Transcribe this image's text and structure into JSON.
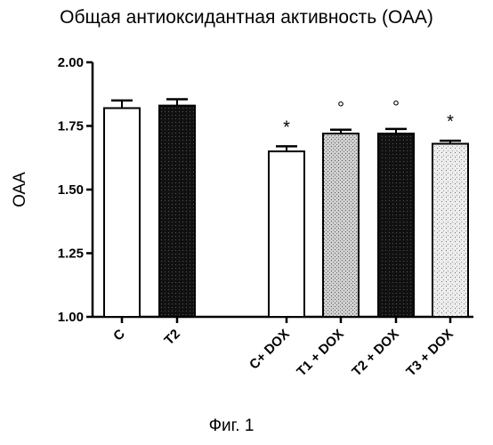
{
  "title": "Общая антиоксидантная активность (ОАА)",
  "caption": "Фиг. 1",
  "chart_data": {
    "type": "bar",
    "title": "Общая антиоксидантная активность (ОАА)",
    "xlabel": "",
    "ylabel": "ОАА",
    "ylim": [
      1.0,
      2.0
    ],
    "yticks": [
      "1.00",
      "1.25",
      "1.50",
      "1.75",
      "2.00"
    ],
    "categories": [
      "C",
      "T2",
      "C+ DOX",
      "T1 + DOX",
      "T2 + DOX",
      "T3 + DOX"
    ],
    "values": [
      1.82,
      1.83,
      1.65,
      1.72,
      1.72,
      1.68
    ],
    "errors": [
      0.03,
      0.025,
      0.02,
      0.015,
      0.018,
      0.012
    ],
    "annotations": [
      "",
      "",
      "*",
      "°",
      "°",
      "*"
    ],
    "bar_fills": [
      "white",
      "black",
      "white",
      "light-gray",
      "black",
      "very-light-gray"
    ],
    "grid": false,
    "legend": "none"
  }
}
